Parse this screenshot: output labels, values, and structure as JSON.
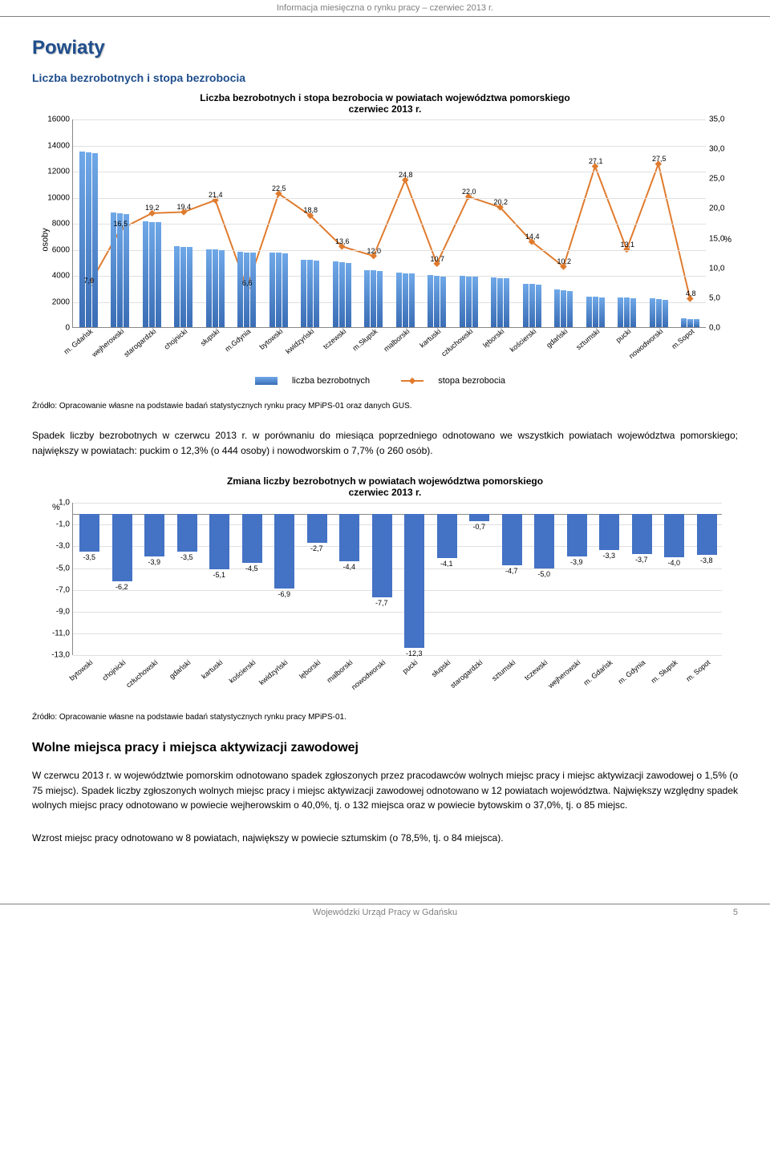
{
  "header": "Informacja miesięczna o rynku pracy – czerwiec 2013 r.",
  "title": "Powiaty",
  "subtitle": "Liczba bezrobotnych i stopa bezrobocia",
  "chart1": {
    "title_line1": "Liczba bezrobotnych i stopa bezrobocia w powiatach województwa pomorskiego",
    "title_line2": "czerwiec 2013 r.",
    "y_left_label": "osoby",
    "y_right_label": "%",
    "y_left_max": 16000,
    "y_left_step": 2000,
    "y_left_ticks": [
      "0",
      "2000",
      "4000",
      "6000",
      "8000",
      "10000",
      "12000",
      "14000",
      "16000"
    ],
    "y_right_max": 35,
    "y_right_step": 5,
    "y_right_ticks": [
      "0,0",
      "5,0",
      "10,0",
      "15,0",
      "20,0",
      "25,0",
      "30,0",
      "35,0"
    ],
    "categories": [
      "m. Gdańsk",
      "wejherowski",
      "starogardzki",
      "chojnicki",
      "słupski",
      "m.Gdynia",
      "bytowski",
      "kwidzyński",
      "tczewski",
      "m.Słupsk",
      "malborski",
      "kartuski",
      "człuchowski",
      "lęborski",
      "kościerski",
      "gdański",
      "sztumski",
      "pucki",
      "nowodworski",
      "m.Sopot"
    ],
    "bars": [
      [
        13500,
        13400,
        13350
      ],
      [
        8800,
        8750,
        8700
      ],
      [
        8100,
        8080,
        8050
      ],
      [
        6200,
        6180,
        6160
      ],
      [
        6000,
        5950,
        5900
      ],
      [
        5800,
        5750,
        5700
      ],
      [
        5720,
        5700,
        5680
      ],
      [
        5200,
        5150,
        5100
      ],
      [
        5050,
        5000,
        4950
      ],
      [
        4400,
        4350,
        4300
      ],
      [
        4200,
        4150,
        4100
      ],
      [
        4000,
        3950,
        3900
      ],
      [
        3950,
        3900,
        3850
      ],
      [
        3800,
        3780,
        3750
      ],
      [
        3350,
        3300,
        3280
      ],
      [
        2900,
        2850,
        2800
      ],
      [
        2350,
        2320,
        2300
      ],
      [
        2300,
        2250,
        2200
      ],
      [
        2200,
        2150,
        2100
      ],
      [
        650,
        640,
        630
      ]
    ],
    "rates": [
      7.0,
      16.5,
      19.2,
      19.4,
      21.4,
      6.6,
      22.5,
      18.8,
      13.6,
      12.0,
      24.8,
      10.7,
      22.0,
      20.2,
      14.4,
      10.2,
      27.1,
      13.1,
      27.5,
      4.8
    ],
    "rate_labels": [
      "7,0",
      "16,5",
      "19,2",
      "19,4",
      "21,4",
      "6,6",
      "22,5",
      "18,8",
      "13,6",
      "12,0",
      "24,8",
      "10,7",
      "22,0",
      "20,2",
      "14,4",
      "10,2",
      "27,1",
      "13,1",
      "27,5",
      "4,8"
    ],
    "line_color": "#e07b2e",
    "bar_color_top": "#6fa8e8",
    "bar_color_bottom": "#3a6db5",
    "legend_bars": "liczba bezrobotnych",
    "legend_line": "stopa bezrobocia"
  },
  "source1": "Źródło: Opracowanie własne na podstawie badań statystycznych rynku pracy MPiPS-01 oraz danych GUS.",
  "para1": "Spadek liczby bezrobotnych w czerwcu 2013 r. w porównaniu do miesiąca poprzedniego odnotowano we wszystkich powiatach województwa pomorskiego; największy w powiatach: puckim o 12,3% (o 444 osoby) i nowodworskim o 7,7% (o 260 osób).",
  "chart2": {
    "title_line1": "Zmiana liczby bezrobotnych w powiatach województwa pomorskiego",
    "title_line2": "czerwiec 2013 r.",
    "y_label": "%",
    "y_min": -13,
    "y_max": 1,
    "y_step": 2,
    "y_ticks": [
      "1,0",
      "-1,0",
      "-3,0",
      "-5,0",
      "-7,0",
      "-9,0",
      "-11,0",
      "-13,0"
    ],
    "categories": [
      "bytowski",
      "chojnicki",
      "człuchowski",
      "gdański",
      "kartuski",
      "kościerski",
      "kwidzyński",
      "lęborski",
      "malborski",
      "nowodworski",
      "pucki",
      "słupski",
      "starogardzki",
      "sztumski",
      "tczewski",
      "wejherowski",
      "m. Gdańsk",
      "m. Gdynia",
      "m. Słupsk",
      "m. Sopot"
    ],
    "values": [
      -3.5,
      -6.2,
      -3.9,
      -3.5,
      -5.1,
      -4.5,
      -6.9,
      -2.7,
      -4.4,
      -7.7,
      -12.3,
      -4.1,
      -0.7,
      -4.7,
      -5.0,
      -3.9,
      -3.3,
      -3.7,
      -4.0,
      -3.8
    ],
    "labels": [
      "-3,5",
      "-6,2",
      "-3,9",
      "-3,5",
      "-5,1",
      "-4,5",
      "-6,9",
      "-2,7",
      "-4,4",
      "-7,7",
      "-12,3",
      "-4,1",
      "-0,7",
      "-4,7",
      "-5,0",
      "-3,9",
      "-3,3",
      "-3,7",
      "-4,0",
      "-3,8"
    ],
    "bar_color": "#4472c4"
  },
  "source2": "Źródło: Opracowanie własne na podstawie badań statystycznych rynku pracy MPiPS-01.",
  "section2_title": "Wolne miejsca pracy i miejsca aktywizacji zawodowej",
  "para2": "W czerwcu 2013 r. w województwie pomorskim odnotowano spadek zgłoszonych przez pracodawców wolnych miejsc pracy i miejsc aktywizacji zawodowej o 1,5% (o 75 miejsc). Spadek liczby zgłoszonych wolnych miejsc pracy i miejsc aktywizacji zawodowej odnotowano w 12 powiatach województwa. Największy względny spadek wolnych miejsc pracy odnotowano w powiecie wejherowskim o 40,0%, tj. o 132 miejsca oraz w powiecie bytowskim o 37,0%, tj. o 85 miejsc.",
  "para3": "Wzrost miejsc pracy odnotowano w 8 powiatach, największy w powiecie sztumskim (o 78,5%, tj. o 84 miejsca).",
  "footer": "Wojewódzki Urząd Pracy w Gdańsku",
  "page_num": "5"
}
